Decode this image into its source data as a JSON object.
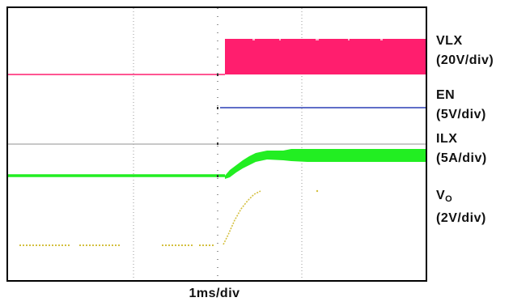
{
  "chart_data": {
    "type": "line",
    "title": "",
    "xlabel": "1ms/div",
    "ylabel": "",
    "x_divisions": 5,
    "grid": true,
    "colors": {
      "VLX": "#ff1e6e",
      "EN": "#2a3fb5",
      "ILX": "#22ee22",
      "VO": "#d4c040",
      "ILX_zero": "#a0a0a0"
    },
    "series": [
      {
        "name": "VLX",
        "scale": "(20V/div)",
        "description_points_ms": [
          [
            0,
            0
          ],
          [
            2.5,
            0
          ],
          [
            2.5,
            "switching"
          ],
          [
            5,
            "switching"
          ]
        ]
      },
      {
        "name": "EN",
        "scale": "(5V/div)",
        "points_ms": [
          [
            2.5,
            0
          ],
          [
            5,
            1
          ]
        ]
      },
      {
        "name": "ILX",
        "scale": "(5A/div)",
        "points_ms": [
          [
            0,
            0
          ],
          [
            2.5,
            0
          ],
          [
            3.0,
            1.1
          ],
          [
            3.5,
            1.5
          ],
          [
            5,
            1.6
          ]
        ]
      },
      {
        "name": "V",
        "name_sub": "O",
        "scale": "(2V/div)",
        "points_ms": [
          [
            0,
            0
          ],
          [
            2.5,
            0
          ],
          [
            3.0,
            2.6
          ],
          [
            5,
            2.6
          ]
        ]
      }
    ]
  }
}
